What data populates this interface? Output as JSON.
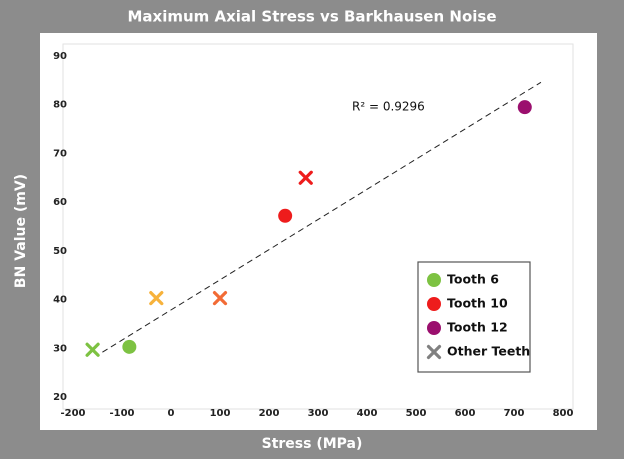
{
  "chart_data": {
    "type": "scatter",
    "title": "Maximum Axial Stress vs Barkhausen Noise",
    "xlabel": "Stress (MPa)",
    "ylabel": "BN Value (mV)",
    "annotation": "R² = 0.9296",
    "xlim": [
      -200,
      800
    ],
    "xticks": [
      -200,
      -100,
      0,
      100,
      200,
      300,
      400,
      500,
      600,
      700,
      800
    ],
    "ylim": [
      20,
      90
    ],
    "yticks": [
      20,
      30,
      40,
      50,
      60,
      70,
      80,
      90
    ],
    "grid": false,
    "legend": "lower right",
    "series": [
      {
        "name": "Tooth 6",
        "color": "#7dc242",
        "marker": "circle",
        "x": [
          -85
        ],
        "values": [
          30.3
        ]
      },
      {
        "name": "Tooth 10",
        "color": "#ee1c1c",
        "marker": "circle",
        "x": [
          233
        ],
        "values": [
          57.2
        ]
      },
      {
        "name": "Tooth 12",
        "color": "#9b0f6e",
        "marker": "circle",
        "x": [
          722
        ],
        "values": [
          79.5
        ]
      },
      {
        "name": "Other Teeth",
        "color": "#808080",
        "marker": "x",
        "x": [
          -160,
          -30,
          100,
          275
        ],
        "values": [
          29.7,
          40.3,
          40.3,
          65
        ],
        "colors": [
          "#7dc242",
          "#f7b23b",
          "#f26b35",
          "#ee1c1c"
        ]
      }
    ],
    "trendline": {
      "x": [
        -140,
        755
      ],
      "y": [
        29.2,
        84.6
      ]
    }
  }
}
